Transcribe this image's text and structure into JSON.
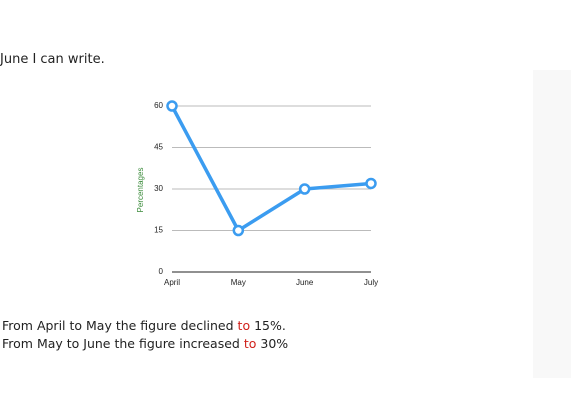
{
  "top_text": "June I can write.",
  "chart_data": {
    "type": "line",
    "y_label": "Percentages",
    "categories": [
      "April",
      "May",
      "June",
      "July"
    ],
    "series": [
      {
        "name": "Percentages",
        "color": "#3b9cf0",
        "values": [
          60,
          15,
          30,
          32
        ]
      }
    ],
    "ylim": [
      0,
      60
    ],
    "yticks": [
      0,
      15,
      30,
      45,
      60
    ],
    "grid": true
  },
  "lines": [
    [
      "From April to May the figure declined ",
      "to",
      " 15%."
    ],
    [
      "From May to June the figure increased ",
      "to",
      " 30%"
    ]
  ]
}
